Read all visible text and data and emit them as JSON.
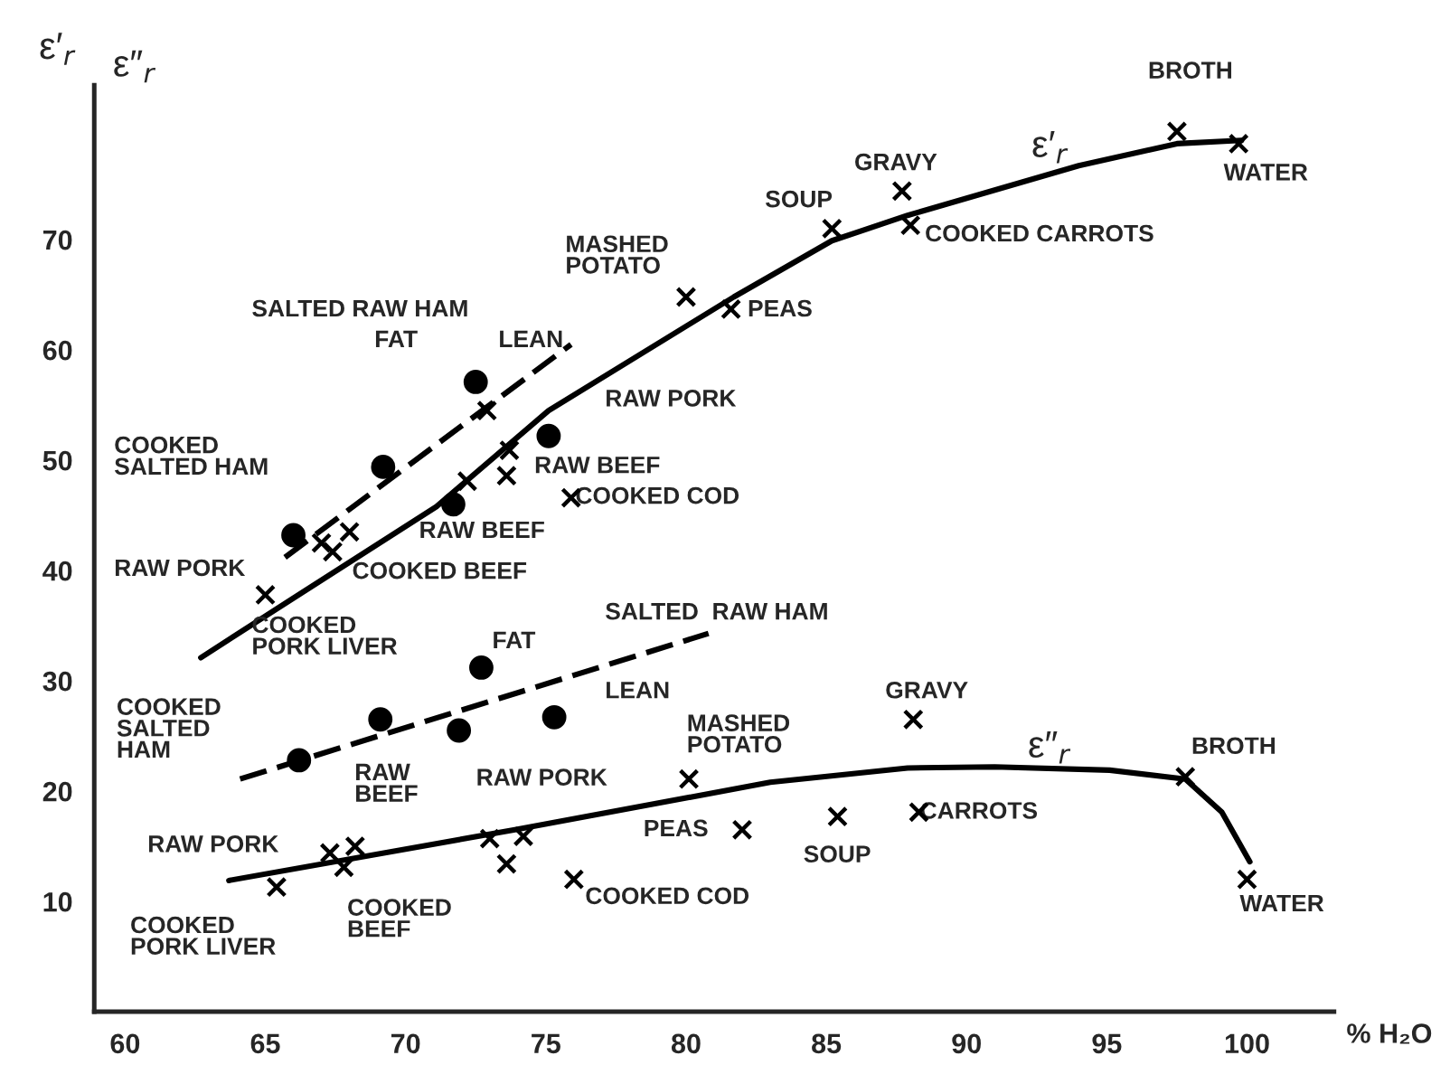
{
  "chart_data": {
    "type": "scatter",
    "xlabel": "% H₂O",
    "ylabel": "ε′$_{r}$",
    "xlim": [
      58.9,
      103.1
    ],
    "ylim": [
      0,
      84
    ],
    "xticks": [
      60,
      65,
      70,
      75,
      80,
      85,
      90,
      95,
      100
    ],
    "yticks": [
      10,
      20,
      30,
      40,
      50,
      60,
      70
    ],
    "grid": false,
    "legend": false,
    "series": [
      {
        "marker": "cross",
        "color": "#000000",
        "x": [
          65.0,
          67.0,
          67.4,
          68.0,
          72.2,
          73.6,
          73.7,
          72.9,
          75.9,
          80.0,
          81.6,
          85.2,
          87.7,
          88.0,
          97.5,
          99.7
        ],
        "values": [
          37.8,
          42.5,
          41.7,
          43.5,
          48.1,
          48.6,
          50.9,
          54.5,
          46.6,
          64.8,
          63.7,
          71.0,
          74.4,
          71.3,
          79.8,
          78.7
        ]
      },
      {
        "marker": "circle",
        "color": "#000000",
        "x": [
          66.0,
          69.2,
          71.7,
          72.5,
          75.1
        ],
        "values": [
          43.2,
          49.4,
          46.0,
          57.1,
          52.2
        ]
      },
      {
        "type": "line",
        "line_style": "solid",
        "color": "#000000",
        "x": [
          62.7,
          66.0,
          71.1,
          75.1,
          81.7,
          85.2,
          87.9,
          94.0,
          97.5,
          99.8
        ],
        "values": [
          32.1,
          37.5,
          45.8,
          54.5,
          64.8,
          69.9,
          72.2,
          76.7,
          78.7,
          79.0
        ]
      },
      {
        "type": "line",
        "line_style": "dashed",
        "color": "#000000",
        "x": [
          65.7,
          75.9
        ],
        "values": [
          41.2,
          60.5
        ]
      },
      {
        "marker": "cross",
        "color": "#000000",
        "x": [
          65.4,
          67.3,
          68.2,
          67.8,
          73.0,
          74.2,
          73.6,
          76.0,
          80.1,
          82.0,
          85.4,
          88.1,
          88.3,
          97.8,
          100.0
        ],
        "values": [
          11.3,
          14.4,
          15.0,
          13.1,
          15.7,
          15.9,
          13.4,
          12.0,
          21.1,
          16.5,
          17.7,
          26.5,
          18.1,
          21.3,
          12.0
        ]
      },
      {
        "marker": "circle",
        "color": "#000000",
        "x": [
          66.2,
          69.1,
          71.9,
          72.7,
          75.3
        ],
        "values": [
          22.8,
          26.5,
          25.5,
          31.2,
          26.7
        ]
      },
      {
        "type": "line",
        "line_style": "solid",
        "color": "#000000",
        "x": [
          63.7,
          73.9,
          83.0,
          87.9,
          91.0,
          95.1,
          97.8,
          99.1,
          100.1
        ],
        "values": [
          11.9,
          16.5,
          20.8,
          22.1,
          22.2,
          21.9,
          21.1,
          18.1,
          13.6
        ]
      },
      {
        "type": "line",
        "line_style": "dashed",
        "color": "#000000",
        "x": [
          64.1,
          80.8
        ],
        "values": [
          21.1,
          34.3
        ]
      }
    ],
    "annotations": [
      "ε″$_{r}$",
      "BROTH",
      "WATER",
      "COOKED CARROTS",
      "GRAVY",
      "SOUP",
      "ε′$_{r}$",
      "MASHED\nPOTATO",
      "PEAS",
      "SALTED RAW HAM",
      "FAT",
      "LEAN",
      "RAW PORK",
      "RAW BEEF",
      "COOKED COD",
      "COOKED\nSALTED HAM",
      "RAW BEEF",
      "RAW PORK",
      "COOKED BEEF",
      "COOKED\nPORK LIVER",
      "FAT",
      "SALTED  RAW HAM",
      "LEAN",
      "COOKED\nSALTED\nHAM",
      "MASHED\nPOTATO",
      "GRAVY",
      "ε″$_{r}$",
      "BROTH",
      "RAW\nBEEF",
      "RAW PORK",
      "RAW PORK",
      "PEAS",
      "SOUP",
      "CARROTS",
      "COOKED COD",
      "COOKED\nBEEF",
      "COOKED\nPORK LIVER",
      "WATER"
    ]
  }
}
